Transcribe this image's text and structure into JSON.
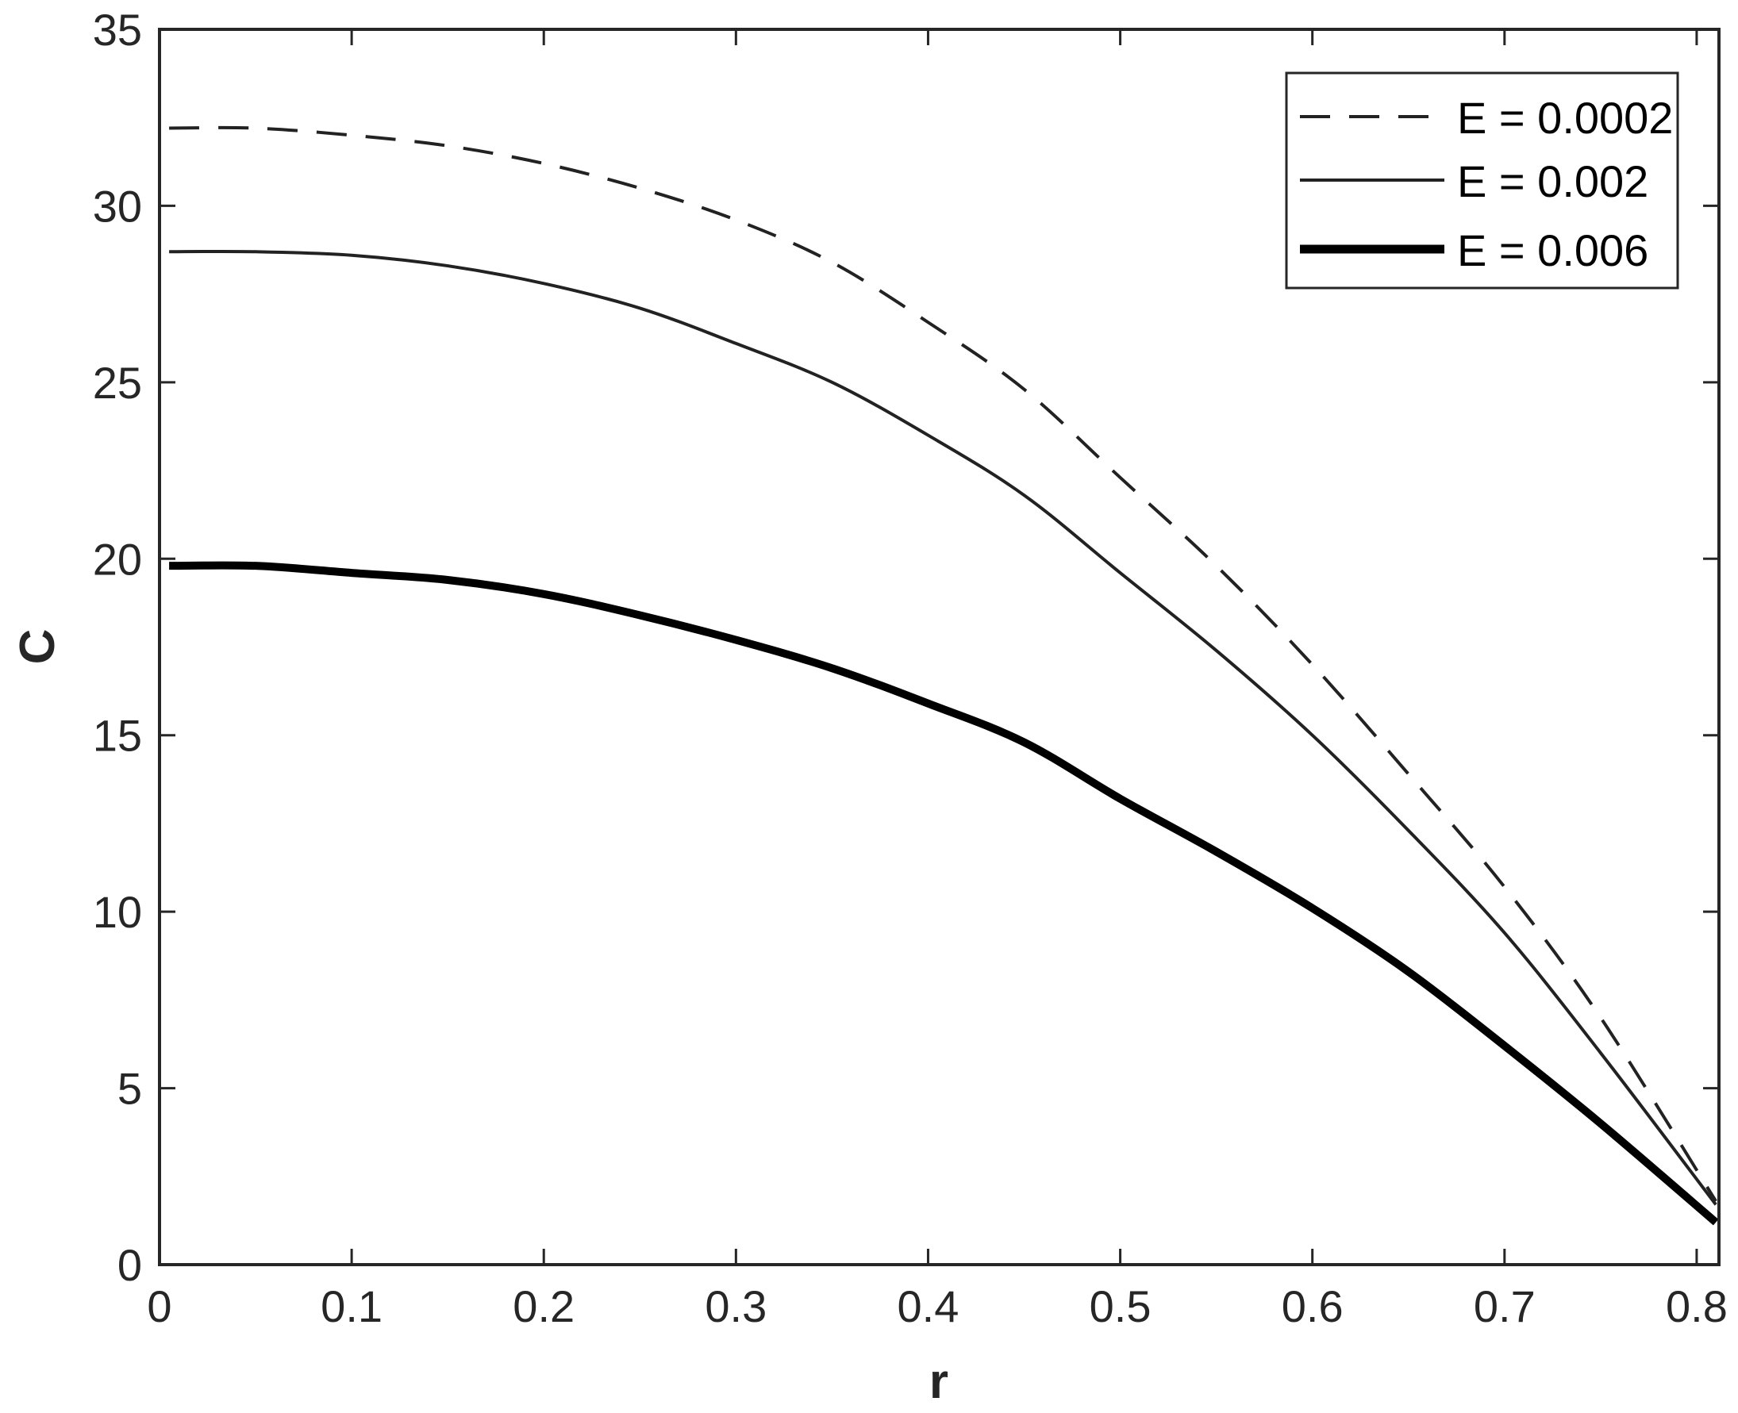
{
  "chart_data": {
    "type": "line",
    "title": "",
    "xlabel": "r",
    "ylabel": "C",
    "xlim": [
      0,
      0.8116
    ],
    "ylim": [
      0,
      35
    ],
    "xticks": [
      "0",
      "0.1",
      "0.2",
      "0.3",
      "0.4",
      "0.5",
      "0.6",
      "0.7",
      "0.8"
    ],
    "yticks": [
      "0",
      "5",
      "10",
      "15",
      "20",
      "25",
      "30",
      "35"
    ],
    "grid": false,
    "legend_position": "top-right",
    "x": [
      0.005,
      0.05,
      0.1,
      0.15,
      0.2,
      0.25,
      0.3,
      0.35,
      0.4,
      0.45,
      0.5,
      0.55,
      0.6,
      0.65,
      0.7,
      0.75,
      0.81
    ],
    "series": [
      {
        "name": "E = 0.0002",
        "style": "dashed",
        "values": [
          32.2,
          32.2,
          32.0,
          31.7,
          31.2,
          30.5,
          29.6,
          28.4,
          26.7,
          24.8,
          22.3,
          19.8,
          17.0,
          13.9,
          10.7,
          7.0,
          1.8
        ]
      },
      {
        "name": "E = 0.002",
        "style": "solid",
        "values": [
          28.7,
          28.7,
          28.6,
          28.3,
          27.8,
          27.1,
          26.1,
          25.0,
          23.5,
          21.8,
          19.6,
          17.4,
          15.0,
          12.3,
          9.4,
          6.0,
          1.7
        ]
      },
      {
        "name": "E = 0.006",
        "style": "thick",
        "values": [
          19.8,
          19.8,
          19.6,
          19.4,
          19.0,
          18.4,
          17.7,
          16.9,
          15.9,
          14.8,
          13.2,
          11.7,
          10.1,
          8.3,
          6.2,
          4.0,
          1.2
        ]
      }
    ]
  }
}
